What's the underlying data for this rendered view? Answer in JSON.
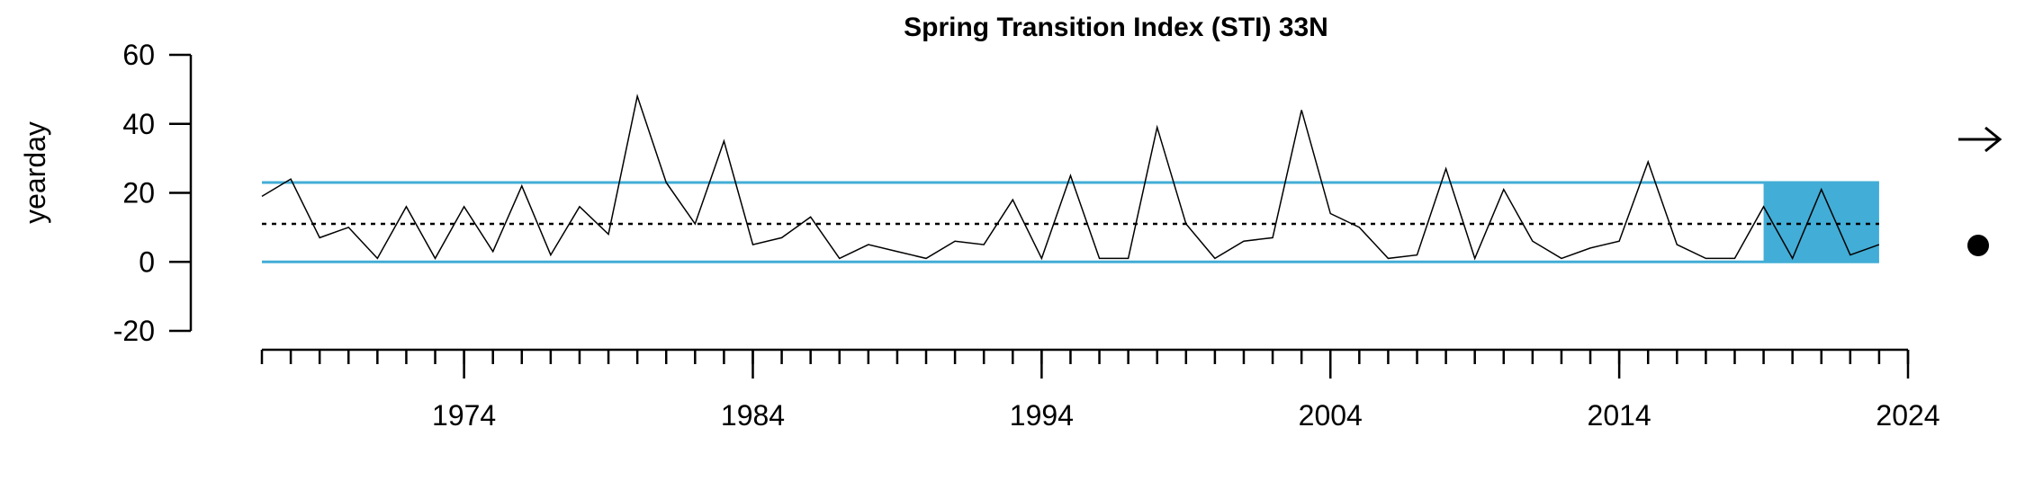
{
  "chart_data": {
    "type": "line",
    "title": "Spring Transition Index (STI) 33N",
    "y_label": "yearday",
    "x": [
      1967,
      1968,
      1969,
      1970,
      1971,
      1972,
      1973,
      1974,
      1975,
      1976,
      1977,
      1978,
      1979,
      1980,
      1981,
      1982,
      1983,
      1984,
      1985,
      1986,
      1987,
      1988,
      1989,
      1990,
      1991,
      1992,
      1993,
      1994,
      1995,
      1996,
      1997,
      1998,
      1999,
      2000,
      2001,
      2002,
      2003,
      2004,
      2005,
      2006,
      2007,
      2008,
      2009,
      2010,
      2011,
      2012,
      2013,
      2014,
      2015,
      2016,
      2017,
      2018,
      2019,
      2020,
      2021,
      2022,
      2023
    ],
    "values": [
      19,
      24,
      7,
      10,
      1,
      16,
      1,
      16,
      3,
      22,
      2,
      16,
      8,
      48,
      23,
      11,
      35,
      5,
      7,
      13,
      1,
      5,
      3,
      1,
      6,
      5,
      18,
      1,
      25,
      1,
      1,
      39,
      11,
      1,
      6,
      7,
      44,
      14,
      10,
      1,
      2,
      27,
      1,
      21,
      6,
      1,
      4,
      6,
      29,
      5,
      1,
      1,
      16,
      1,
      21,
      2,
      5
    ],
    "color": "#000000",
    "mean": 11,
    "upper": 23,
    "lower": 0,
    "band_color": "#42add6",
    "highlight": [
      2019,
      2023
    ],
    "xlim": [
      1967,
      2024
    ],
    "ylim": [
      -20,
      60
    ],
    "yticks": [
      -20,
      0,
      20,
      40,
      60
    ],
    "xticks": [
      1974,
      1984,
      1994,
      2004,
      2014,
      2024
    ],
    "xminorticks": [
      1967,
      1968,
      1969,
      1970,
      1971,
      1972,
      1973,
      1974,
      1975,
      1976,
      1977,
      1978,
      1979,
      1980,
      1981,
      1982,
      1983,
      1984,
      1985,
      1986,
      1987,
      1988,
      1989,
      1990,
      1991,
      1992,
      1993,
      1994,
      1995,
      1996,
      1997,
      1998,
      1999,
      2000,
      2001,
      2002,
      2003,
      2004,
      2005,
      2006,
      2007,
      2008,
      2009,
      2010,
      2011,
      2012,
      2013,
      2014,
      2015,
      2016,
      2017,
      2018,
      2019,
      2020,
      2021,
      2022,
      2023,
      2024
    ]
  }
}
